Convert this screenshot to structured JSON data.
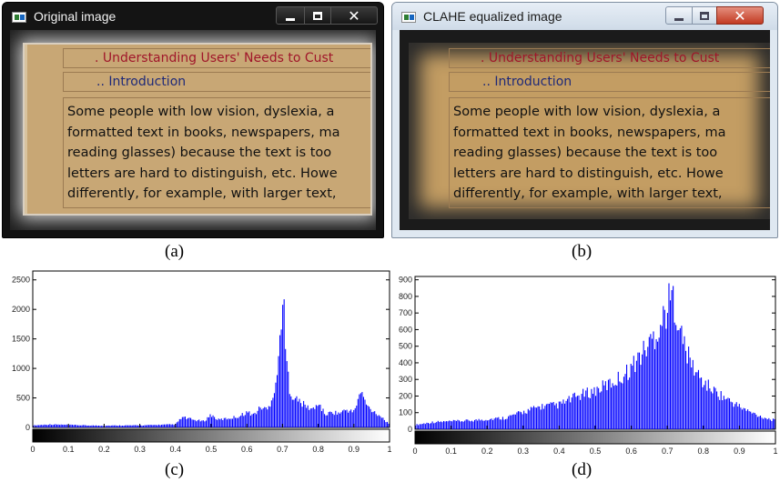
{
  "window_a": {
    "title": "Original image"
  },
  "window_b": {
    "title": "CLAHE equalized image"
  },
  "document": {
    "title_line": ". Understanding Users' Needs to Cust",
    "intro_line": ".. Introduction",
    "body_lines": [
      "Some people with low vision, dyslexia, a",
      "formatted text in books, newspapers, ma",
      "reading glasses) because the text is too",
      "letters are hard to distinguish, etc. Howe",
      "differently, for example, with larger text,"
    ]
  },
  "captions": {
    "a": "(a)",
    "b": "(b)",
    "c": "(c)",
    "d": "(d)"
  },
  "chart_data": [
    {
      "type": "bar",
      "panel": "(c)",
      "title": "",
      "xlabel": "",
      "ylabel": "",
      "xlim": [
        0,
        1
      ],
      "ylim": [
        0,
        2650
      ],
      "x_ticks": [
        "0",
        "0.1",
        "0.2",
        "0.3",
        "0.4",
        "0.5",
        "0.6",
        "0.7",
        "0.8",
        "0.9",
        "1"
      ],
      "y_ticks": [
        "0",
        "500",
        "1000",
        "1500",
        "2000",
        "2500"
      ],
      "bar_color": "#0000ff",
      "colorbar": "grayscale black-to-white",
      "x": [
        0.0,
        0.05,
        0.1,
        0.15,
        0.2,
        0.25,
        0.3,
        0.35,
        0.4,
        0.42,
        0.45,
        0.48,
        0.5,
        0.52,
        0.55,
        0.58,
        0.6,
        0.62,
        0.64,
        0.66,
        0.68,
        0.69,
        0.7,
        0.705,
        0.71,
        0.72,
        0.73,
        0.75,
        0.77,
        0.79,
        0.8,
        0.82,
        0.84,
        0.86,
        0.88,
        0.9,
        0.92,
        0.94,
        0.96,
        0.98,
        1.0
      ],
      "y": [
        40,
        60,
        50,
        40,
        35,
        40,
        40,
        50,
        60,
        200,
        150,
        120,
        250,
        150,
        180,
        220,
        300,
        250,
        400,
        350,
        800,
        1300,
        2650,
        2200,
        1400,
        800,
        600,
        500,
        400,
        350,
        500,
        250,
        300,
        280,
        350,
        300,
        700,
        400,
        300,
        200,
        50
      ]
    },
    {
      "type": "bar",
      "panel": "(d)",
      "title": "",
      "xlabel": "",
      "ylabel": "",
      "xlim": [
        0,
        1
      ],
      "ylim": [
        0,
        920
      ],
      "x_ticks": [
        "0",
        "0.1",
        "0.2",
        "0.3",
        "0.4",
        "0.5",
        "0.6",
        "0.7",
        "0.8",
        "0.9",
        "1"
      ],
      "y_ticks": [
        "0",
        "100",
        "200",
        "300",
        "400",
        "500",
        "600",
        "700",
        "800",
        "900"
      ],
      "bar_color": "#0000ff",
      "colorbar": "grayscale black-to-white",
      "x": [
        0.0,
        0.05,
        0.1,
        0.15,
        0.2,
        0.25,
        0.3,
        0.35,
        0.4,
        0.45,
        0.5,
        0.55,
        0.58,
        0.6,
        0.62,
        0.64,
        0.66,
        0.68,
        0.7,
        0.71,
        0.72,
        0.73,
        0.74,
        0.76,
        0.78,
        0.8,
        0.83,
        0.86,
        0.9,
        0.93,
        0.96,
        1.0
      ],
      "y": [
        30,
        50,
        55,
        60,
        70,
        80,
        120,
        160,
        170,
        230,
        270,
        330,
        380,
        430,
        500,
        560,
        640,
        720,
        850,
        920,
        900,
        780,
        650,
        500,
        400,
        330,
        270,
        220,
        160,
        120,
        90,
        60
      ]
    }
  ]
}
